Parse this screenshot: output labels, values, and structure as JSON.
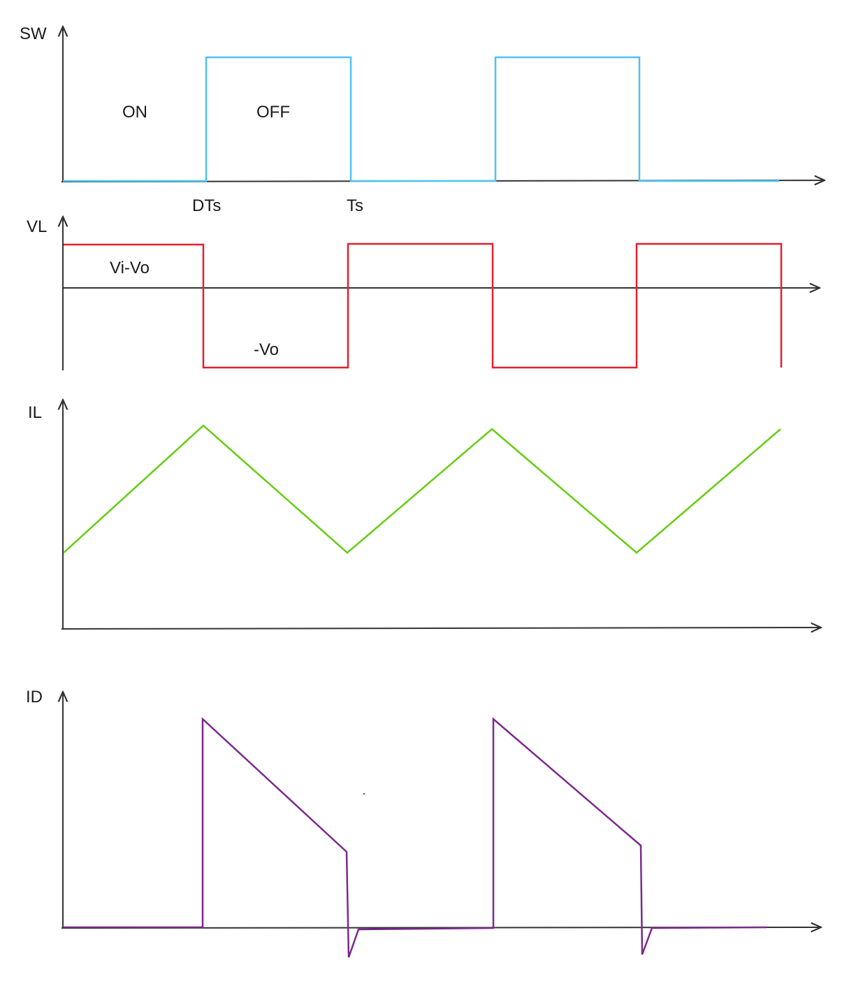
{
  "panels": {
    "sw": {
      "axis_label": "SW",
      "on_label": "ON",
      "off_label": "OFF",
      "tick_dts": "DTs",
      "tick_ts": "Ts",
      "color": "#4cc3f0"
    },
    "vl": {
      "axis_label": "VL",
      "high_label": "Vi-Vo",
      "low_label": "-Vo",
      "color": "#e0202e"
    },
    "il": {
      "axis_label": "IL",
      "color": "#66cc11"
    },
    "id": {
      "axis_label": "ID",
      "color": "#7a2a8a"
    }
  },
  "colors": {
    "axis": "#333333",
    "text": "#1a1a1a"
  }
}
